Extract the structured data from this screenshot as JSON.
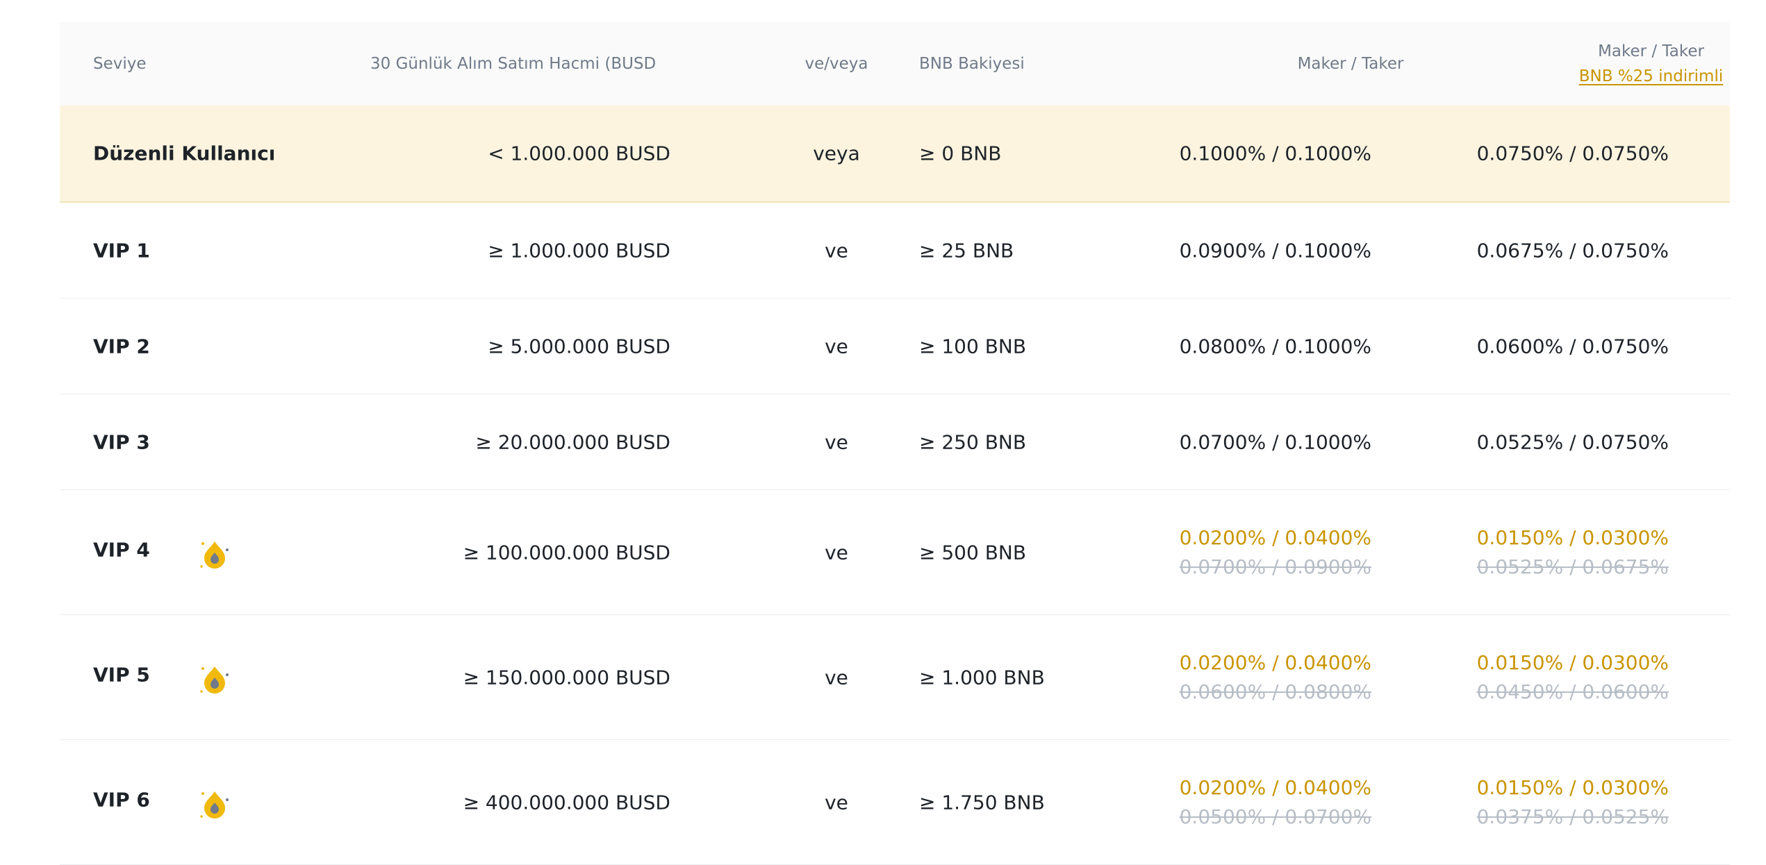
{
  "header": {
    "level": "Seviye",
    "volume": "30 Günlük Alım Satım Hacmi (BUSD",
    "and_or": "ve/veya",
    "bnb_balance": "BNB Bakiyesi",
    "maker_taker": "Maker / Taker",
    "maker_taker_discount_title": "Maker / Taker",
    "maker_taker_discount_link": "BNB %25 indirimli"
  },
  "colors": {
    "accent": "#c99400",
    "highlight_row": "#fcf4df",
    "muted_text": "#707a8a",
    "strikethrough_text": "#b7bdc6"
  },
  "rows": [
    {
      "level": "Düzenli Kullanıcı",
      "volume": "< 1.000.000 BUSD",
      "and_or": "veya",
      "bnb": "≥ 0 BNB",
      "fee": "0.1000% / 0.1000%",
      "fee_discount": "0.0750% / 0.0750%"
    },
    {
      "level": "VIP 1",
      "volume": "≥ 1.000.000 BUSD",
      "and_or": "ve",
      "bnb": "≥ 25 BNB",
      "fee": "0.0900% / 0.1000%",
      "fee_discount": "0.0675% / 0.0750%"
    },
    {
      "level": "VIP 2",
      "volume": "≥ 5.000.000 BUSD",
      "and_or": "ve",
      "bnb": "≥ 100 BNB",
      "fee": "0.0800% / 0.1000%",
      "fee_discount": "0.0600% / 0.0750%"
    },
    {
      "level": "VIP 3",
      "volume": "≥ 20.000.000 BUSD",
      "and_or": "ve",
      "bnb": "≥ 250 BNB",
      "fee": "0.0700% / 0.1000%",
      "fee_discount": "0.0525% / 0.0750%"
    },
    {
      "level": "VIP 4",
      "badge_icon": "promo-drop-icon",
      "volume": "≥ 100.000.000 BUSD",
      "and_or": "ve",
      "bnb": "≥ 500 BNB",
      "fee_promo": "0.0200% / 0.0400%",
      "fee_old": "0.0700% / 0.0900%",
      "fee_discount_promo": "0.0150% / 0.0300%",
      "fee_discount_old": "0.0525% / 0.0675%"
    },
    {
      "level": "VIP 5",
      "badge_icon": "promo-drop-icon",
      "volume": "≥ 150.000.000 BUSD",
      "and_or": "ve",
      "bnb": "≥ 1.000 BNB",
      "fee_promo": "0.0200% / 0.0400%",
      "fee_old": "0.0600% / 0.0800%",
      "fee_discount_promo": "0.0150% / 0.0300%",
      "fee_discount_old": "0.0450% / 0.0600%"
    },
    {
      "level": "VIP 6",
      "badge_icon": "promo-drop-icon",
      "volume": "≥ 400.000.000 BUSD",
      "and_or": "ve",
      "bnb": "≥ 1.750 BNB",
      "fee_promo": "0.0200% / 0.0400%",
      "fee_old": "0.0500% / 0.0700%",
      "fee_discount_promo": "0.0150% / 0.0300%",
      "fee_discount_old": "0.0375% / 0.0525%"
    }
  ]
}
